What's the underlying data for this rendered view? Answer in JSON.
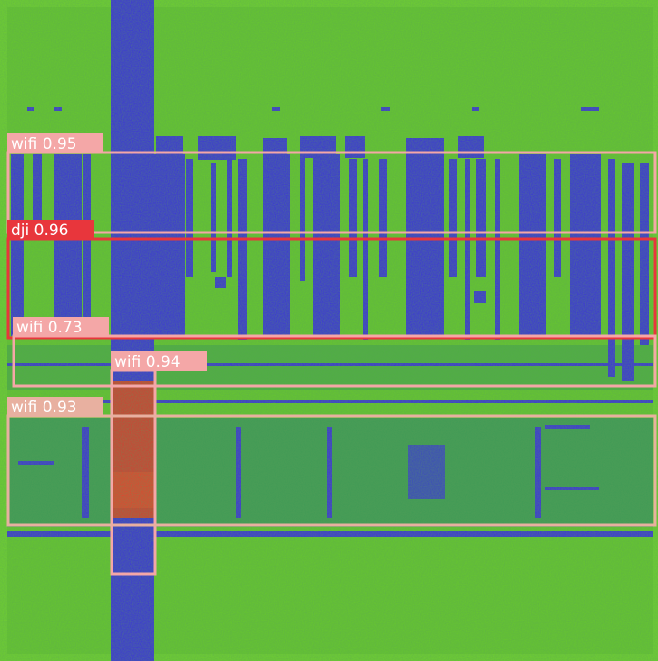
{
  "detections": [
    {
      "label": "wifi 0.95"
    },
    {
      "label": "dji 0.96"
    },
    {
      "label": "wifi 0.73"
    },
    {
      "label": "wifi 0.94"
    },
    {
      "label": "wifi 0.93"
    }
  ]
}
